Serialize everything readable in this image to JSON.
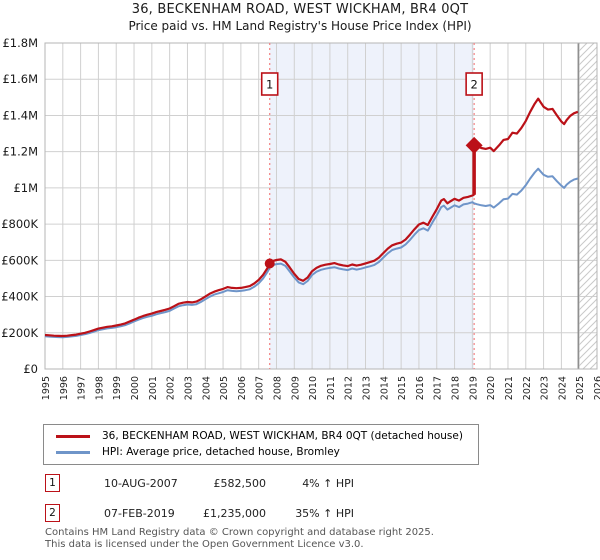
{
  "title": "36, BECKENHAM ROAD, WEST WICKHAM, BR4 0QT",
  "subtitle": "Price paid vs. HM Land Registry's House Price Index (HPI)",
  "legend": {
    "property_label": "36, BECKENHAM ROAD, WEST WICKHAM, BR4 0QT (detached house)",
    "hpi_label": "HPI: Average price, detached house, Bromley"
  },
  "sales": [
    {
      "num": "1",
      "date": "10-AUG-2007",
      "price": "£582,500",
      "hpi": "4% ↑ HPI",
      "year": 2007.62,
      "price_k": 582.5,
      "marker": "circle"
    },
    {
      "num": "2",
      "date": "07-FEB-2019",
      "price": "£1,235,000",
      "hpi": "35% ↑ HPI",
      "year": 2019.1,
      "price_k": 1235,
      "marker": "diamond",
      "jump_from_k": 962
    }
  ],
  "footer": {
    "line1": "Contains HM Land Registry data © Crown copyright and database right 2025.",
    "line2": "This data is licensed under the Open Government Licence v3.0."
  },
  "chart_data": {
    "type": "line",
    "title": "36, BECKENHAM ROAD, WEST WICKHAM, BR4 0QT",
    "subtitle": "Price paid vs. HM Land Registry's House Price Index (HPI)",
    "legend_position": "bottom",
    "grid": true,
    "x_axis": {
      "min": 1995,
      "max": 2026,
      "tick_labels": [
        "1995",
        "1996",
        "1997",
        "1998",
        "1999",
        "2000",
        "2001",
        "2002",
        "2003",
        "2004",
        "2005",
        "2006",
        "2007",
        "2008",
        "2009",
        "2010",
        "2011",
        "2012",
        "2013",
        "2014",
        "2015",
        "2016",
        "2017",
        "2018",
        "2019",
        "2020",
        "2021",
        "2022",
        "2023",
        "2024",
        "2025",
        "2026"
      ]
    },
    "y_axis": {
      "min_k": 0,
      "max_k": 1800,
      "tick_values_k": [
        0,
        200,
        400,
        600,
        800,
        1000,
        1200,
        1400,
        1600,
        1800
      ],
      "tick_labels": [
        "£0",
        "£200K",
        "£400K",
        "£600K",
        "£800K",
        "£1M",
        "£1.2M",
        "£1.4M",
        "£1.6M",
        "£1.8M"
      ]
    },
    "shaded_span_years": [
      2007.62,
      2019.1
    ],
    "hatched_span_years": [
      2024.95,
      2026
    ],
    "colors": {
      "property": "#bb1118",
      "hpi": "#6f95c9",
      "shade": "#eef2fb",
      "grid": "#d0d0d0",
      "border": "#b5b5b5",
      "dashed": "#f28080",
      "hatch_line": "#c9c9c9",
      "hatch_edge": "#8f8f8f",
      "marker_box": "#bb1118"
    },
    "series": [
      {
        "name": "36, BECKENHAM ROAD, WEST WICKHAM, BR4 0QT (detached house)",
        "color": "#bb1118",
        "points_year_gbpk": [
          [
            1995.0,
            188
          ],
          [
            1995.25,
            186
          ],
          [
            1995.5,
            184
          ],
          [
            1995.75,
            183
          ],
          [
            1996.0,
            182
          ],
          [
            1996.25,
            184
          ],
          [
            1996.5,
            187
          ],
          [
            1996.75,
            190
          ],
          [
            1997.0,
            195
          ],
          [
            1997.25,
            200
          ],
          [
            1997.5,
            207
          ],
          [
            1997.75,
            215
          ],
          [
            1998.0,
            223
          ],
          [
            1998.25,
            228
          ],
          [
            1998.5,
            233
          ],
          [
            1998.75,
            236
          ],
          [
            1999.0,
            240
          ],
          [
            1999.25,
            245
          ],
          [
            1999.5,
            252
          ],
          [
            1999.75,
            262
          ],
          [
            2000.0,
            272
          ],
          [
            2000.25,
            283
          ],
          [
            2000.5,
            292
          ],
          [
            2000.75,
            300
          ],
          [
            2001.0,
            306
          ],
          [
            2001.25,
            314
          ],
          [
            2001.5,
            320
          ],
          [
            2001.75,
            327
          ],
          [
            2002.0,
            334
          ],
          [
            2002.25,
            347
          ],
          [
            2002.5,
            360
          ],
          [
            2002.75,
            366
          ],
          [
            2003.0,
            370
          ],
          [
            2003.25,
            368
          ],
          [
            2003.5,
            372
          ],
          [
            2003.75,
            385
          ],
          [
            2004.0,
            400
          ],
          [
            2004.25,
            415
          ],
          [
            2004.5,
            427
          ],
          [
            2004.75,
            435
          ],
          [
            2005.0,
            442
          ],
          [
            2005.25,
            452
          ],
          [
            2005.5,
            448
          ],
          [
            2005.75,
            446
          ],
          [
            2006.0,
            448
          ],
          [
            2006.25,
            452
          ],
          [
            2006.5,
            458
          ],
          [
            2006.75,
            472
          ],
          [
            2007.0,
            492
          ],
          [
            2007.25,
            520
          ],
          [
            2007.5,
            558
          ],
          [
            2007.62,
            582.5
          ],
          [
            2007.75,
            595
          ],
          [
            2008.0,
            602
          ],
          [
            2008.25,
            605
          ],
          [
            2008.5,
            592
          ],
          [
            2008.75,
            560
          ],
          [
            2009.0,
            525
          ],
          [
            2009.25,
            497
          ],
          [
            2009.5,
            487
          ],
          [
            2009.75,
            505
          ],
          [
            2010.0,
            540
          ],
          [
            2010.25,
            558
          ],
          [
            2010.5,
            570
          ],
          [
            2010.75,
            576
          ],
          [
            2011.0,
            580
          ],
          [
            2011.25,
            585
          ],
          [
            2011.5,
            577
          ],
          [
            2011.75,
            572
          ],
          [
            2012.0,
            568
          ],
          [
            2012.25,
            577
          ],
          [
            2012.5,
            571
          ],
          [
            2012.75,
            576
          ],
          [
            2013.0,
            583
          ],
          [
            2013.25,
            590
          ],
          [
            2013.5,
            598
          ],
          [
            2013.75,
            615
          ],
          [
            2014.0,
            640
          ],
          [
            2014.25,
            665
          ],
          [
            2014.5,
            683
          ],
          [
            2014.75,
            692
          ],
          [
            2015.0,
            698
          ],
          [
            2015.25,
            715
          ],
          [
            2015.5,
            742
          ],
          [
            2015.75,
            772
          ],
          [
            2016.0,
            798
          ],
          [
            2016.25,
            808
          ],
          [
            2016.5,
            795
          ],
          [
            2016.75,
            840
          ],
          [
            2017.0,
            882
          ],
          [
            2017.25,
            930
          ],
          [
            2017.4,
            938
          ],
          [
            2017.6,
            915
          ],
          [
            2017.75,
            925
          ],
          [
            2018.0,
            940
          ],
          [
            2018.25,
            930
          ],
          [
            2018.5,
            945
          ],
          [
            2018.75,
            950
          ],
          [
            2019.0,
            958
          ],
          [
            2019.08,
            962
          ],
          [
            2019.1,
            1235
          ],
          [
            2019.25,
            1228
          ],
          [
            2019.5,
            1220
          ],
          [
            2019.75,
            1215
          ],
          [
            2020.0,
            1222
          ],
          [
            2020.2,
            1203
          ],
          [
            2020.5,
            1235
          ],
          [
            2020.75,
            1265
          ],
          [
            2021.0,
            1270
          ],
          [
            2021.25,
            1305
          ],
          [
            2021.5,
            1300
          ],
          [
            2021.75,
            1330
          ],
          [
            2022.0,
            1370
          ],
          [
            2022.25,
            1420
          ],
          [
            2022.5,
            1465
          ],
          [
            2022.7,
            1493
          ],
          [
            2022.85,
            1470
          ],
          [
            2023.0,
            1448
          ],
          [
            2023.25,
            1432
          ],
          [
            2023.5,
            1436
          ],
          [
            2023.75,
            1400
          ],
          [
            2024.0,
            1366
          ],
          [
            2024.15,
            1352
          ],
          [
            2024.3,
            1375
          ],
          [
            2024.5,
            1398
          ],
          [
            2024.7,
            1412
          ],
          [
            2024.92,
            1420
          ]
        ]
      },
      {
        "name": "HPI: Average price, detached house, Bromley",
        "color": "#6f95c9",
        "points_year_gbpk": [
          [
            1995.0,
            181
          ],
          [
            1995.25,
            179
          ],
          [
            1995.5,
            177
          ],
          [
            1995.75,
            176
          ],
          [
            1996.0,
            175
          ],
          [
            1996.25,
            177
          ],
          [
            1996.5,
            180
          ],
          [
            1996.75,
            183
          ],
          [
            1997.0,
            188
          ],
          [
            1997.25,
            192
          ],
          [
            1997.5,
            199
          ],
          [
            1997.75,
            207
          ],
          [
            1998.0,
            214
          ],
          [
            1998.25,
            219
          ],
          [
            1998.5,
            224
          ],
          [
            1998.75,
            227
          ],
          [
            1999.0,
            231
          ],
          [
            1999.25,
            236
          ],
          [
            1999.5,
            242
          ],
          [
            1999.75,
            252
          ],
          [
            2000.0,
            262
          ],
          [
            2000.25,
            272
          ],
          [
            2000.5,
            281
          ],
          [
            2000.75,
            288
          ],
          [
            2001.0,
            294
          ],
          [
            2001.25,
            302
          ],
          [
            2001.5,
            308
          ],
          [
            2001.75,
            314
          ],
          [
            2002.0,
            321
          ],
          [
            2002.25,
            334
          ],
          [
            2002.5,
            346
          ],
          [
            2002.75,
            352
          ],
          [
            2003.0,
            356
          ],
          [
            2003.25,
            354
          ],
          [
            2003.5,
            358
          ],
          [
            2003.75,
            370
          ],
          [
            2004.0,
            385
          ],
          [
            2004.25,
            399
          ],
          [
            2004.5,
            411
          ],
          [
            2004.75,
            418
          ],
          [
            2005.0,
            425
          ],
          [
            2005.25,
            435
          ],
          [
            2005.5,
            431
          ],
          [
            2005.75,
            429
          ],
          [
            2006.0,
            431
          ],
          [
            2006.25,
            435
          ],
          [
            2006.5,
            440
          ],
          [
            2006.75,
            454
          ],
          [
            2007.0,
            473
          ],
          [
            2007.25,
            500
          ],
          [
            2007.5,
            537
          ],
          [
            2007.62,
            560
          ],
          [
            2007.75,
            572
          ],
          [
            2008.0,
            579
          ],
          [
            2008.25,
            582
          ],
          [
            2008.5,
            569
          ],
          [
            2008.75,
            538
          ],
          [
            2009.0,
            505
          ],
          [
            2009.25,
            478
          ],
          [
            2009.5,
            468
          ],
          [
            2009.75,
            486
          ],
          [
            2010.0,
            519
          ],
          [
            2010.25,
            537
          ],
          [
            2010.5,
            548
          ],
          [
            2010.75,
            554
          ],
          [
            2011.0,
            558
          ],
          [
            2011.25,
            562
          ],
          [
            2011.5,
            555
          ],
          [
            2011.75,
            550
          ],
          [
            2012.0,
            546
          ],
          [
            2012.25,
            555
          ],
          [
            2012.5,
            549
          ],
          [
            2012.75,
            554
          ],
          [
            2013.0,
            561
          ],
          [
            2013.25,
            567
          ],
          [
            2013.5,
            575
          ],
          [
            2013.75,
            591
          ],
          [
            2014.0,
            615
          ],
          [
            2014.25,
            639
          ],
          [
            2014.5,
            657
          ],
          [
            2014.75,
            665
          ],
          [
            2015.0,
            671
          ],
          [
            2015.25,
            688
          ],
          [
            2015.5,
            713
          ],
          [
            2015.75,
            742
          ],
          [
            2016.0,
            767
          ],
          [
            2016.25,
            777
          ],
          [
            2016.5,
            764
          ],
          [
            2016.75,
            808
          ],
          [
            2017.0,
            848
          ],
          [
            2017.25,
            894
          ],
          [
            2017.4,
            902
          ],
          [
            2017.6,
            880
          ],
          [
            2017.75,
            889
          ],
          [
            2018.0,
            904
          ],
          [
            2018.25,
            894
          ],
          [
            2018.5,
            909
          ],
          [
            2018.75,
            913
          ],
          [
            2019.0,
            921
          ],
          [
            2019.1,
            915
          ],
          [
            2019.25,
            910
          ],
          [
            2019.5,
            904
          ],
          [
            2019.75,
            900
          ],
          [
            2020.0,
            905
          ],
          [
            2020.2,
            891
          ],
          [
            2020.5,
            915
          ],
          [
            2020.75,
            937
          ],
          [
            2021.0,
            941
          ],
          [
            2021.25,
            967
          ],
          [
            2021.5,
            963
          ],
          [
            2021.75,
            985
          ],
          [
            2022.0,
            1015
          ],
          [
            2022.25,
            1052
          ],
          [
            2022.5,
            1085
          ],
          [
            2022.7,
            1106
          ],
          [
            2022.85,
            1089
          ],
          [
            2023.0,
            1072
          ],
          [
            2023.25,
            1061
          ],
          [
            2023.5,
            1064
          ],
          [
            2023.75,
            1037
          ],
          [
            2024.0,
            1012
          ],
          [
            2024.15,
            1000
          ],
          [
            2024.3,
            1018
          ],
          [
            2024.5,
            1035
          ],
          [
            2024.7,
            1046
          ],
          [
            2024.92,
            1052
          ]
        ]
      }
    ]
  }
}
